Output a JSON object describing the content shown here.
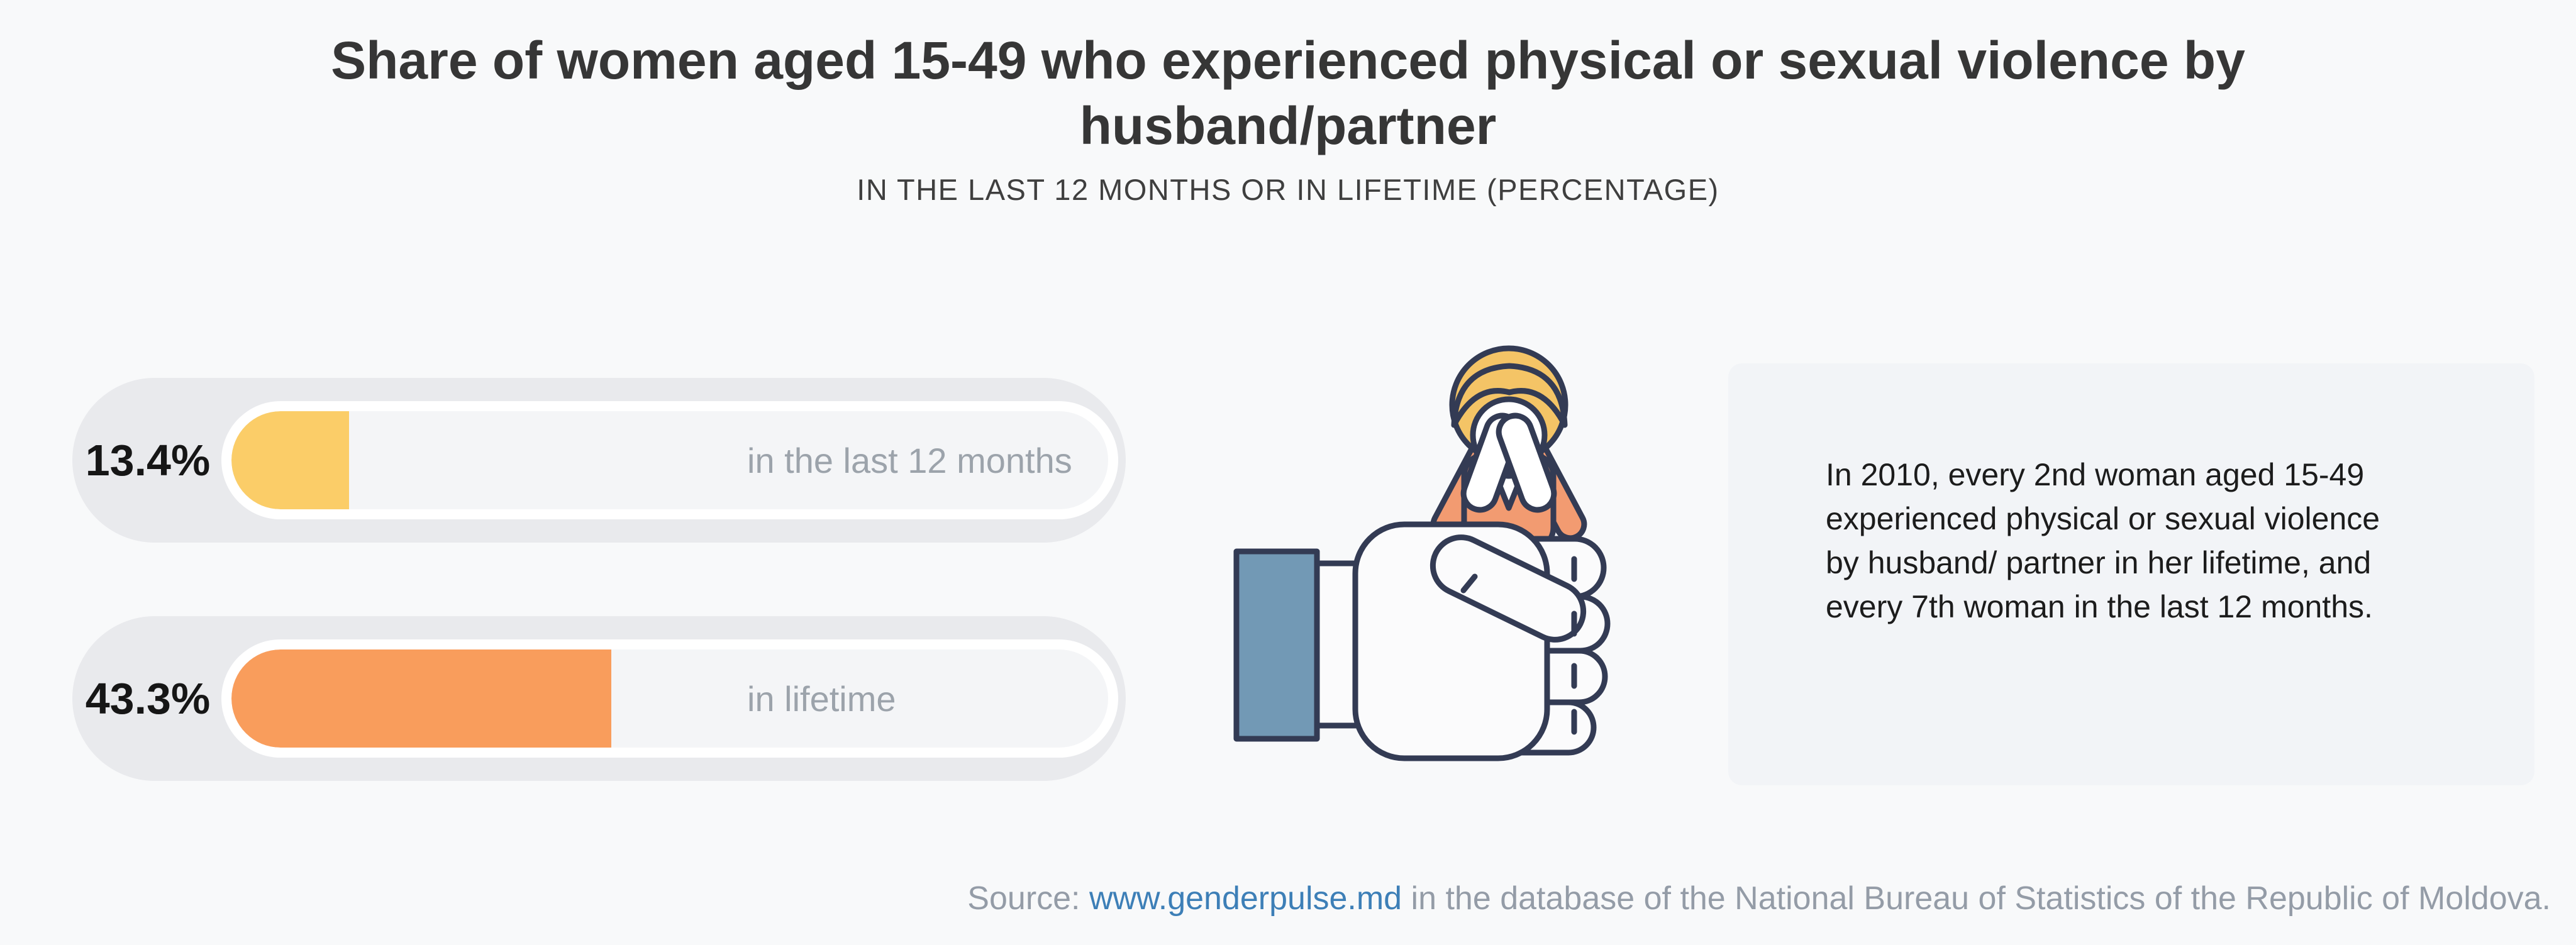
{
  "header": {
    "title": "Share of women aged 15-49 who experienced physical or sexual violence by husband/partner",
    "subtitle": "IN THE LAST 12 MONTHS OR IN LIFETIME (PERCENTAGE)"
  },
  "chart_data": {
    "type": "bar",
    "orientation": "horizontal",
    "title": "Share of women aged 15-49 who experienced physical or sexual violence by husband/partner",
    "subtitle": "IN THE LAST 12 MONTHS OR IN LIFETIME (PERCENTAGE)",
    "unit": "percent",
    "categories": [
      "in the last 12 months",
      "in lifetime"
    ],
    "values": [
      13.4,
      43.3
    ],
    "value_labels": [
      "13.4%",
      "43.3%"
    ],
    "bar_colors": [
      "#FBCD68",
      "#F99D5C"
    ],
    "xlim": [
      0,
      100
    ],
    "grid": false,
    "legend": false
  },
  "bars": [
    {
      "value_label": "13.4%",
      "percent": 13.4,
      "label": "in the last 12 months",
      "color": "#FBCD68"
    },
    {
      "value_label": "43.3%",
      "percent": 43.3,
      "label": "in lifetime",
      "color": "#F99D5C"
    }
  ],
  "infobox": {
    "lines": [
      "In 2010, every 2nd woman aged 15-49",
      "experienced physical or sexual violence",
      "by husband/ partner in her lifetime, and",
      "every 7th woman in the last 12 months."
    ]
  },
  "illustration": {
    "icon": "fist-holding-crying-woman-icon",
    "parts": [
      "blue-sleeve",
      "clenched-fist",
      "crying-woman-covering-face"
    ]
  },
  "footer": {
    "source_prefix": "Source: ",
    "source_link": "www.genderpulse.md",
    "source_suffix": " in the database of the National Bureau of Statistics of the Republic of Moldova."
  },
  "colors": {
    "page_background": "#F8F9FA",
    "bar_outer_pill": "#E9EAED",
    "bar_inner_ring": "#FFFFFF",
    "bar_track": "#F4F5F7",
    "bar_yellow": "#FBCD68",
    "bar_orange": "#F99D5C",
    "title_text": "#363636",
    "category_text": "#9CA3AB",
    "value_text": "#161616",
    "source_text": "#949CA7",
    "link_blue": "#3D7FB7",
    "outline_navy": "#333B54",
    "sleeve_blue": "#7299B5",
    "hair_blonde": "#F4C466",
    "clothes_orange": "#F29B71",
    "infobox_background": "#F2F4F7"
  }
}
